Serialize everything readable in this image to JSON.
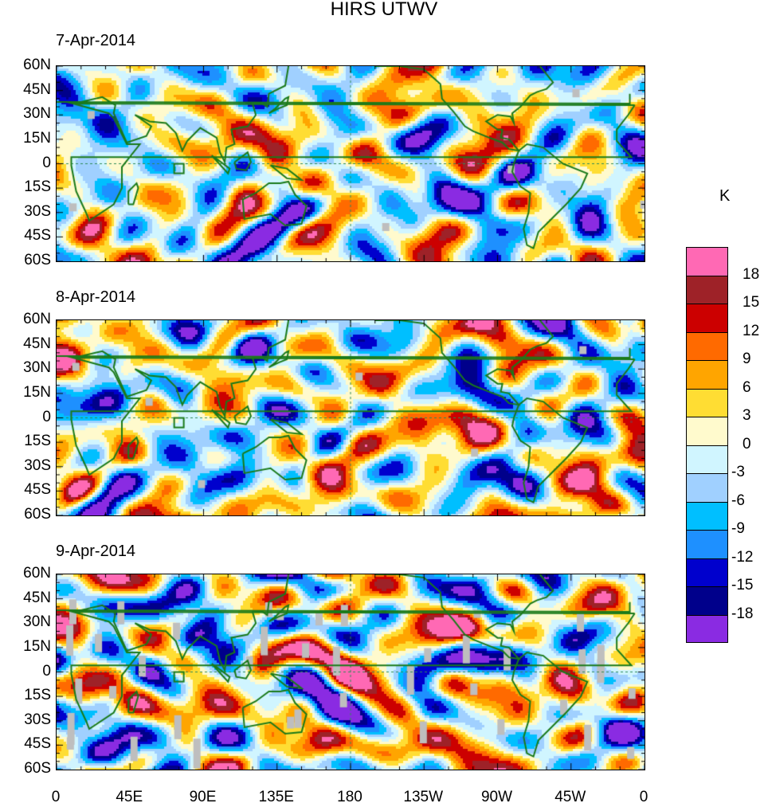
{
  "chart_data": {
    "type": "heatmap",
    "title": "HIRS UTWV",
    "units": "K",
    "panels": [
      {
        "label": "7-Apr-2014",
        "seed": 7
      },
      {
        "label": "8-Apr-2014",
        "seed": 8
      },
      {
        "label": "9-Apr-2014",
        "seed": 9
      }
    ],
    "lon_range": [
      0,
      360
    ],
    "lat_range": [
      -60,
      60
    ],
    "y_ticks": [
      "60N",
      "45N",
      "30N",
      "15N",
      "0",
      "15S",
      "30S",
      "45S",
      "60S"
    ],
    "x_ticks": [
      "0",
      "45E",
      "90E",
      "135E",
      "180",
      "135W",
      "90W",
      "45W",
      "0"
    ],
    "levels": [
      -18,
      -15,
      -12,
      -9,
      -6,
      -3,
      0,
      3,
      6,
      9,
      12,
      15,
      18
    ],
    "level_labels": [
      "18",
      "15",
      "12",
      "9",
      "6",
      "3",
      "0",
      "-3",
      "-6",
      "-9",
      "-12",
      "-15",
      "-18"
    ],
    "colors": [
      "#ff69b4",
      "#9e2228",
      "#cc0000",
      "#ff6a00",
      "#ffa500",
      "#ffdd33",
      "#fffacd",
      "#d0f5ff",
      "#a0d0ff",
      "#00bfff",
      "#1e90ff",
      "#0000cd",
      "#00008b",
      "#8a2be2"
    ],
    "coastline_color": "#1a7a1a",
    "missing_color": "#bebebe"
  }
}
